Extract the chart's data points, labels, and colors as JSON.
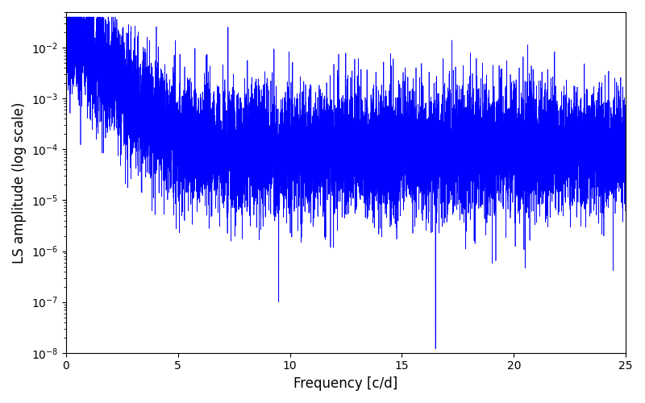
{
  "xlabel": "Frequency [c/d]",
  "ylabel": "LS amplitude (log scale)",
  "line_color": "blue",
  "line_width": 0.5,
  "freq_min": 0,
  "freq_max": 25,
  "ylim_min": 1e-08,
  "ylim_max": 0.05,
  "xlim_min": 0,
  "xlim_max": 25,
  "seed": 42,
  "n_points": 10000,
  "background_color": "#ffffff",
  "xlabel_fontsize": 12,
  "ylabel_fontsize": 12,
  "tick_fontsize": 10
}
